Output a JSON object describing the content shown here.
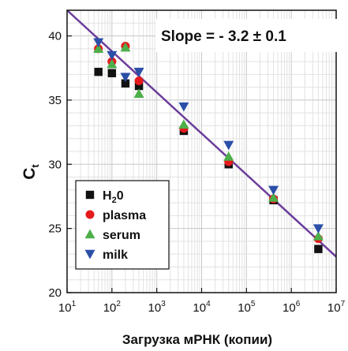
{
  "chart_data": {
    "type": "scatter",
    "xlabel": "Загрузка мРНК (копии)",
    "ylabel_main": "C",
    "ylabel_sub": "t",
    "x_scale": "log",
    "xlim": [
      10,
      10000000
    ],
    "ylim": [
      20,
      42
    ],
    "x_ticks": [
      {
        "value": 10,
        "base": "10",
        "exp": "1"
      },
      {
        "value": 100,
        "base": "10",
        "exp": "2"
      },
      {
        "value": 1000,
        "base": "10",
        "exp": "3"
      },
      {
        "value": 10000,
        "base": "10",
        "exp": "4"
      },
      {
        "value": 100000,
        "base": "10",
        "exp": "5"
      },
      {
        "value": 1000000,
        "base": "10",
        "exp": "6"
      },
      {
        "value": 10000000,
        "base": "10",
        "exp": "7"
      }
    ],
    "y_ticks": [
      {
        "value": 20,
        "label": "20"
      },
      {
        "value": 25,
        "label": "25"
      },
      {
        "value": 30,
        "label": "30"
      },
      {
        "value": 35,
        "label": "35"
      },
      {
        "value": 40,
        "label": "40"
      }
    ],
    "grid": true,
    "annotation": "Slope = - 3.2 ± 0.1",
    "fit_line": {
      "slope": -3.2,
      "intercept": 45.2,
      "color": "#6a3d9a"
    },
    "legend_position": "bottom-left",
    "series": [
      {
        "name_main": "H",
        "name_sub": "2",
        "name_tail": "0",
        "marker": "square",
        "color": "#111111",
        "x": [
          50,
          100,
          200,
          400,
          4000,
          40000,
          400000,
          4000000
        ],
        "y": [
          37.2,
          37.1,
          36.3,
          36.1,
          32.6,
          30.0,
          27.2,
          23.4
        ]
      },
      {
        "name": "plasma",
        "marker": "circle",
        "color": "#e41a1c",
        "x": [
          50,
          100,
          200,
          400,
          4000,
          40000,
          400000,
          4000000
        ],
        "y": [
          39.0,
          38.0,
          39.2,
          36.5,
          32.8,
          30.2,
          27.3,
          24.2
        ]
      },
      {
        "name": "serum",
        "marker": "triangle-up",
        "color": "#4daf4a",
        "x": [
          50,
          100,
          200,
          400,
          4000,
          40000,
          400000,
          4000000
        ],
        "y": [
          39.0,
          37.8,
          39.1,
          35.5,
          33.1,
          30.6,
          27.4,
          24.4
        ]
      },
      {
        "name": "milk",
        "marker": "triangle-down",
        "color": "#2b4fa8",
        "x": [
          50,
          100,
          200,
          400,
          4000,
          40000,
          400000,
          4000000
        ],
        "y": [
          39.5,
          38.5,
          36.8,
          37.2,
          34.5,
          31.5,
          28.0,
          25.0
        ]
      }
    ]
  }
}
